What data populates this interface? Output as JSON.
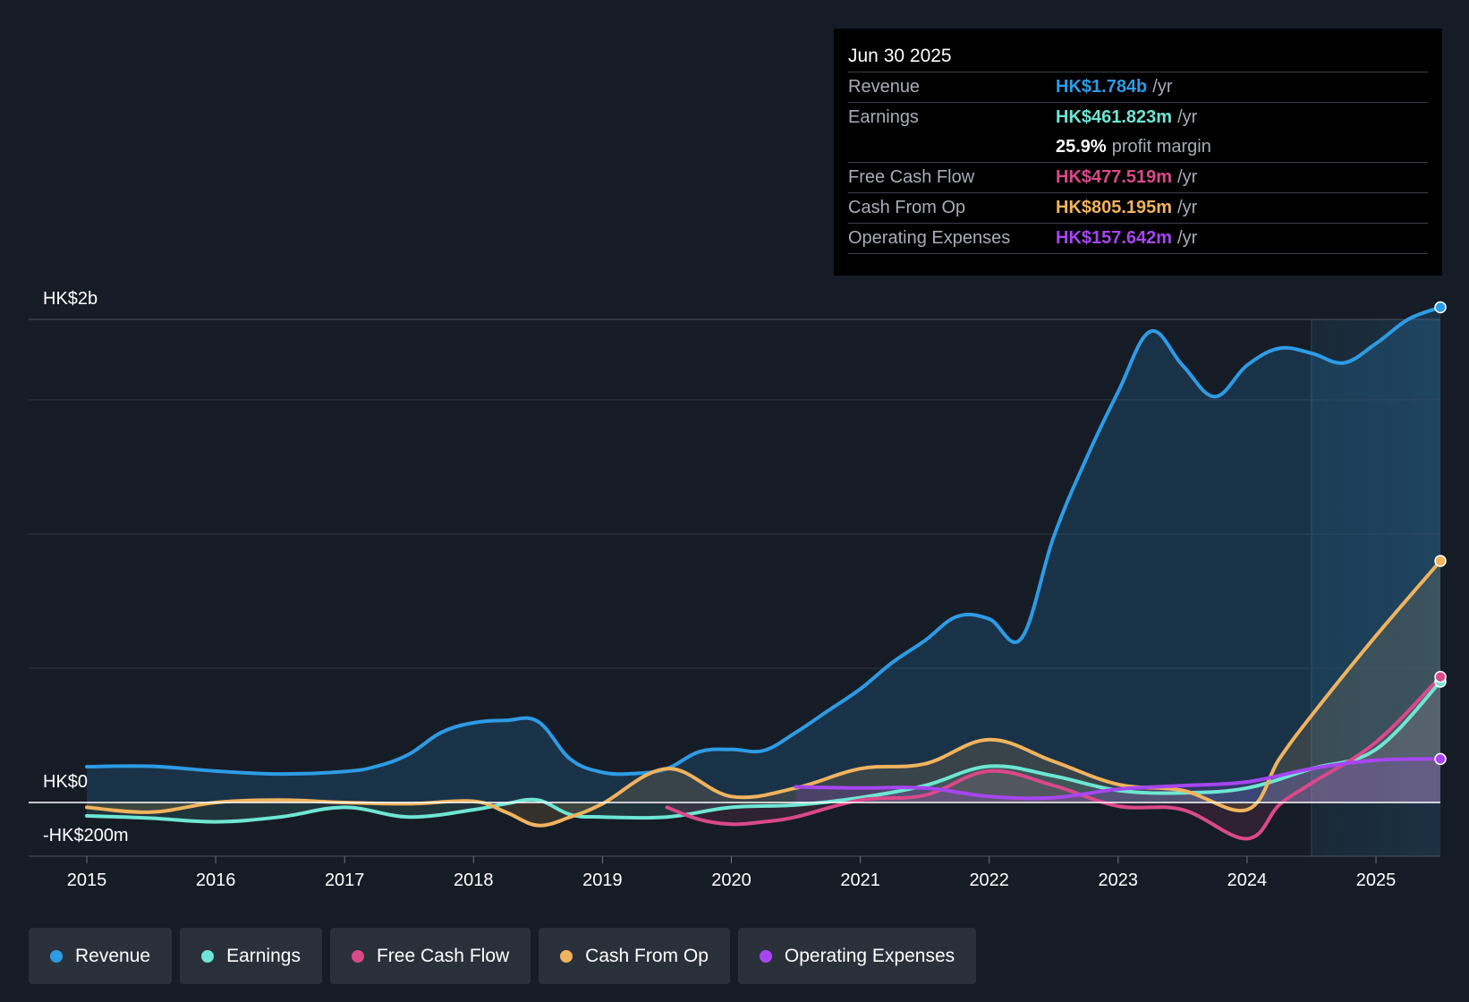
{
  "tooltip": {
    "date": "Jun 30 2025",
    "rows": [
      {
        "name": "Revenue",
        "value": "HK$1.784b",
        "unit": "/yr",
        "color": "#2d9be5"
      },
      {
        "name": "Earnings",
        "value": "HK$461.823m",
        "unit": "/yr",
        "color": "#6ee6d3"
      },
      {
        "name": "",
        "value": "25.9%",
        "unit": "profit margin",
        "color": "#ffffff"
      },
      {
        "name": "Free Cash Flow",
        "value": "HK$477.519m",
        "unit": "/yr",
        "color": "#d9498a"
      },
      {
        "name": "Cash From Op",
        "value": "HK$805.195m",
        "unit": "/yr",
        "color": "#f0b35e"
      },
      {
        "name": "Operating Expenses",
        "value": "HK$157.642m",
        "unit": "/yr",
        "color": "#a646f0"
      }
    ]
  },
  "legend": [
    {
      "label": "Revenue",
      "color": "#2d9be5"
    },
    {
      "label": "Earnings",
      "color": "#6ee6d3"
    },
    {
      "label": "Free Cash Flow",
      "color": "#d9498a"
    },
    {
      "label": "Cash From Op",
      "color": "#f0b35e"
    },
    {
      "label": "Operating Expenses",
      "color": "#a646f0"
    }
  ],
  "chart_data": {
    "type": "area",
    "title": "",
    "xlabel": "",
    "ylabel": "",
    "y_axis_labels": {
      "top": "HK$2b",
      "zero": "HK$0",
      "bottom": "-HK$200m"
    },
    "ylim": [
      -200,
      2000
    ],
    "xlim": [
      2015,
      2025.5
    ],
    "x_ticks": [
      2015,
      2016,
      2017,
      2018,
      2019,
      2020,
      2021,
      2022,
      2023,
      2024,
      2025
    ],
    "x_tick_labels": [
      "2015",
      "2016",
      "2017",
      "2018",
      "2019",
      "2020",
      "2021",
      "2022",
      "2023",
      "2024",
      "2025"
    ],
    "y_gridlines": [
      2000,
      1667,
      1111,
      556,
      0
    ],
    "forecast_region_start": 2024.5,
    "series": [
      {
        "name": "Revenue",
        "color": "#2d9be5",
        "x": [
          2015,
          2015.5,
          2016,
          2016.5,
          2017,
          2017.25,
          2017.5,
          2017.75,
          2018,
          2018.25,
          2018.5,
          2018.75,
          2019,
          2019.25,
          2019.5,
          2019.75,
          2020,
          2020.25,
          2020.5,
          2020.75,
          2021,
          2021.25,
          2021.5,
          2021.75,
          2022,
          2022.25,
          2022.5,
          2022.75,
          2023,
          2023.25,
          2023.5,
          2023.75,
          2024,
          2024.25,
          2024.5,
          2024.75,
          2025,
          2025.25,
          2025.5
        ],
        "values": [
          148,
          150,
          130,
          118,
          128,
          150,
          200,
          290,
          330,
          340,
          335,
          180,
          125,
          120,
          140,
          210,
          220,
          215,
          290,
          380,
          470,
          580,
          670,
          770,
          760,
          680,
          1100,
          1420,
          1700,
          1950,
          1810,
          1680,
          1810,
          1880,
          1860,
          1820,
          1900,
          2000,
          2050
        ]
      },
      {
        "name": "Earnings",
        "color": "#6ee6d3",
        "x": [
          2015,
          2015.5,
          2016,
          2016.5,
          2017,
          2017.5,
          2018,
          2018.25,
          2018.5,
          2018.75,
          2019,
          2019.5,
          2020,
          2020.5,
          2021,
          2021.5,
          2022,
          2022.5,
          2023,
          2023.5,
          2024,
          2024.5,
          2025,
          2025.5
        ],
        "values": [
          -55,
          -65,
          -80,
          -60,
          -20,
          -60,
          -30,
          -5,
          10,
          -50,
          -60,
          -60,
          -20,
          -10,
          20,
          70,
          150,
          110,
          50,
          40,
          60,
          140,
          220,
          500
        ]
      },
      {
        "name": "Free Cash Flow",
        "color": "#d9498a",
        "x": [
          2019.5,
          2019.75,
          2020,
          2020.25,
          2020.5,
          2021,
          2021.5,
          2022,
          2022.5,
          2023,
          2023.5,
          2024,
          2024.25,
          2024.5,
          2025,
          2025.5
        ],
        "values": [
          -20,
          -70,
          -90,
          -80,
          -60,
          10,
          30,
          130,
          70,
          -15,
          -30,
          -150,
          -10,
          80,
          250,
          520
        ]
      },
      {
        "name": "Cash From Op",
        "color": "#f0b35e",
        "x": [
          2015,
          2015.5,
          2016,
          2016.5,
          2017,
          2017.5,
          2018,
          2018.25,
          2018.5,
          2018.75,
          2019,
          2019.5,
          2020,
          2020.5,
          2021,
          2021.5,
          2022,
          2022.5,
          2023,
          2023.5,
          2024,
          2024.25,
          2024.5,
          2025,
          2025.5
        ],
        "values": [
          -20,
          -40,
          0,
          10,
          0,
          -5,
          5,
          -40,
          -95,
          -60,
          -5,
          140,
          25,
          60,
          140,
          160,
          260,
          170,
          75,
          50,
          -30,
          180,
          360,
          690,
          1000
        ]
      },
      {
        "name": "Operating Expenses",
        "color": "#a646f0",
        "x": [
          2020.5,
          2021,
          2021.5,
          2022,
          2022.5,
          2023,
          2023.5,
          2024,
          2024.5,
          2025,
          2025.5
        ],
        "values": [
          65,
          60,
          60,
          25,
          20,
          55,
          70,
          85,
          140,
          175,
          180
        ]
      }
    ]
  }
}
